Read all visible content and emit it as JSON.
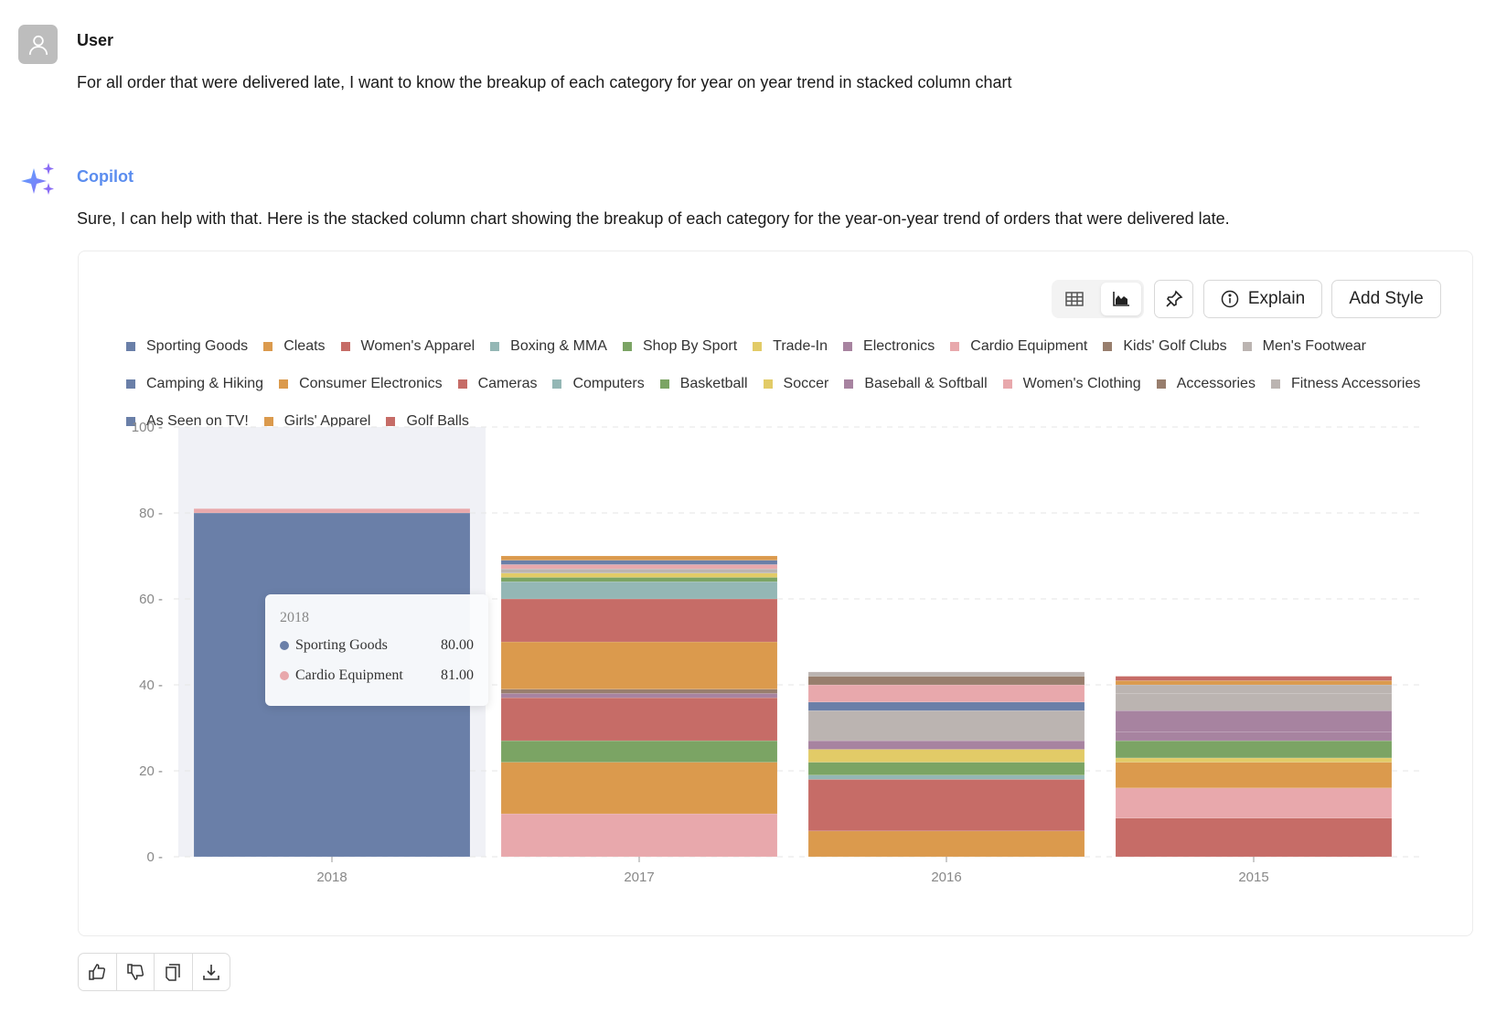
{
  "user": {
    "name": "User",
    "message": "For all order that were delivered late, I want to know the breakup of each category for year on year trend in stacked column chart",
    "icon": "user-icon"
  },
  "copilot": {
    "name": "Copilot",
    "message": "Sure, I can help with that. Here is the stacked column chart showing the breakup of each category for the year-on-year trend of orders that were delivered late.",
    "icon": "sparkle-icon"
  },
  "toolbar": {
    "table_view": "table-icon",
    "chart_view": "chart-icon",
    "pin": "pin-icon",
    "explain_label": "Explain",
    "add_style_label": "Add Style",
    "active_view": "chart"
  },
  "tooltip": {
    "title": "2018",
    "rows": [
      {
        "name": "Sporting Goods",
        "value": "80.00",
        "color": "#6a7fa8"
      },
      {
        "name": "Cardio Equipment",
        "value": "81.00",
        "color": "#e8a8ac"
      }
    ]
  },
  "feedback": {
    "icons": [
      "thumbs-up-icon",
      "thumbs-down-icon",
      "copy-icon",
      "download-icon"
    ]
  },
  "chart_data": {
    "type": "bar",
    "stacked": true,
    "ylim": [
      0,
      100
    ],
    "yticks": [
      0,
      20,
      40,
      60,
      80,
      100
    ],
    "grid": true,
    "legend_position": "top",
    "highlighted_category": "2018",
    "legend": [
      {
        "name": "Sporting Goods",
        "color": "#6a7fa8"
      },
      {
        "name": "Cleats",
        "color": "#db9a4d"
      },
      {
        "name": "Women's Apparel",
        "color": "#c66c67"
      },
      {
        "name": "Boxing & MMA",
        "color": "#94b7b5"
      },
      {
        "name": "Shop By Sport",
        "color": "#7ba464"
      },
      {
        "name": "Trade-In",
        "color": "#e2cb67"
      },
      {
        "name": "Electronics",
        "color": "#a783a0"
      },
      {
        "name": "Cardio Equipment",
        "color": "#e8a8ac"
      },
      {
        "name": "Kids' Golf Clubs",
        "color": "#987e6d"
      },
      {
        "name": "Men's Footwear",
        "color": "#bbb4b1"
      },
      {
        "name": "Camping & Hiking",
        "color": "#6a7fa8"
      },
      {
        "name": "Consumer Electronics",
        "color": "#db9a4d"
      },
      {
        "name": "Cameras",
        "color": "#c66c67"
      },
      {
        "name": "Computers",
        "color": "#94b7b5"
      },
      {
        "name": "Basketball",
        "color": "#7ba464"
      },
      {
        "name": "Soccer",
        "color": "#e2cb67"
      },
      {
        "name": "Baseball & Softball",
        "color": "#a783a0"
      },
      {
        "name": "Women's Clothing",
        "color": "#e8a8ac"
      },
      {
        "name": "Accessories",
        "color": "#987e6d"
      },
      {
        "name": "Fitness Accessories",
        "color": "#bbb4b1"
      },
      {
        "name": "As Seen on  TV!",
        "color": "#6a7fa8"
      },
      {
        "name": "Girls' Apparel",
        "color": "#db9a4d"
      },
      {
        "name": "Golf Balls",
        "color": "#c66c67"
      }
    ],
    "categories": [
      "2018",
      "2017",
      "2016",
      "2015"
    ],
    "stacks": [
      {
        "category": "2018",
        "segments": [
          {
            "name": "Sporting Goods",
            "value": 80
          },
          {
            "name": "Cardio Equipment",
            "value": 1
          }
        ]
      },
      {
        "category": "2017",
        "segments": [
          {
            "name": "Cardio Equipment",
            "value": 10
          },
          {
            "name": "Cleats",
            "value": 12
          },
          {
            "name": "Shop By Sport",
            "value": 5
          },
          {
            "name": "Women's Apparel",
            "value": 10
          },
          {
            "name": "Electronics",
            "value": 1
          },
          {
            "name": "Kids' Golf Clubs",
            "value": 1
          },
          {
            "name": "Consumer Electronics",
            "value": 11
          },
          {
            "name": "Cameras",
            "value": 10
          },
          {
            "name": "Boxing & MMA",
            "value": 4
          },
          {
            "name": "Basketball",
            "value": 1
          },
          {
            "name": "Trade-In",
            "value": 1
          },
          {
            "name": "Men's Footwear",
            "value": 1
          },
          {
            "name": "Women's Clothing",
            "value": 1
          },
          {
            "name": "Camping & Hiking",
            "value": 1
          },
          {
            "name": "Girls' Apparel",
            "value": 1
          }
        ]
      },
      {
        "category": "2016",
        "segments": [
          {
            "name": "Cleats",
            "value": 6
          },
          {
            "name": "Women's Apparel",
            "value": 12
          },
          {
            "name": "Boxing & MMA",
            "value": 1
          },
          {
            "name": "Shop By Sport",
            "value": 3
          },
          {
            "name": "Trade-In",
            "value": 3
          },
          {
            "name": "Electronics",
            "value": 2
          },
          {
            "name": "Men's Footwear",
            "value": 7
          },
          {
            "name": "Sporting Goods",
            "value": 2
          },
          {
            "name": "Cardio Equipment",
            "value": 4
          },
          {
            "name": "Kids' Golf Clubs",
            "value": 2
          },
          {
            "name": "Fitness Accessories",
            "value": 1
          }
        ]
      },
      {
        "category": "2015",
        "segments": [
          {
            "name": "Women's Apparel",
            "value": 9
          },
          {
            "name": "Cardio Equipment",
            "value": 7
          },
          {
            "name": "Cleats",
            "value": 6
          },
          {
            "name": "Trade-In",
            "value": 1
          },
          {
            "name": "Shop By Sport",
            "value": 4
          },
          {
            "name": "Electronics",
            "value": 2
          },
          {
            "name": "Baseball & Softball",
            "value": 5
          },
          {
            "name": "Men's Footwear",
            "value": 4
          },
          {
            "name": "Fitness Accessories",
            "value": 2
          },
          {
            "name": "Consumer Electronics",
            "value": 1
          },
          {
            "name": "Cameras",
            "value": 1
          }
        ]
      }
    ]
  }
}
